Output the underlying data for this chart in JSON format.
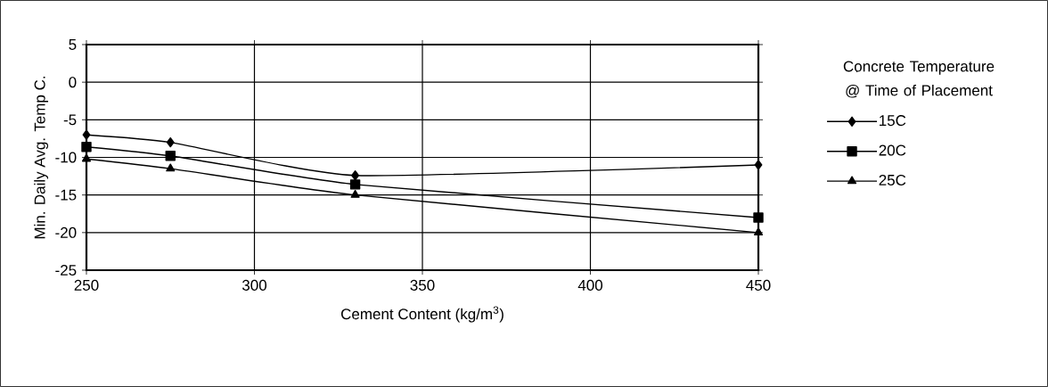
{
  "chart_data": {
    "type": "line",
    "xlabel": "Cement Content (kg/m$^{3}$)",
    "ylabel": "Min. Daily Avg. Temp C.",
    "legend_title": "Concrete Temperature @ Time of Placement",
    "x": [
      250,
      275,
      330,
      450
    ],
    "series": [
      {
        "name": "15C",
        "color": "#000000",
        "marker": "diamond",
        "values": [
          -7,
          -8,
          -12.4,
          -11
        ]
      },
      {
        "name": "20C",
        "color": "#000000",
        "marker": "square",
        "values": [
          -8.6,
          -9.8,
          -13.6,
          -18
        ]
      },
      {
        "name": "25C",
        "color": "#000000",
        "marker": "triangle",
        "values": [
          -10.2,
          -11.5,
          -15,
          -20
        ]
      }
    ],
    "xlim": [
      250,
      450
    ],
    "xticks": [
      250,
      300,
      350,
      400,
      450
    ],
    "ylim": [
      -25,
      5
    ],
    "yticks": [
      -25,
      -20,
      -15,
      -10,
      -5,
      0,
      5
    ],
    "grid": true,
    "legend": "right",
    "line_style": "solid"
  }
}
